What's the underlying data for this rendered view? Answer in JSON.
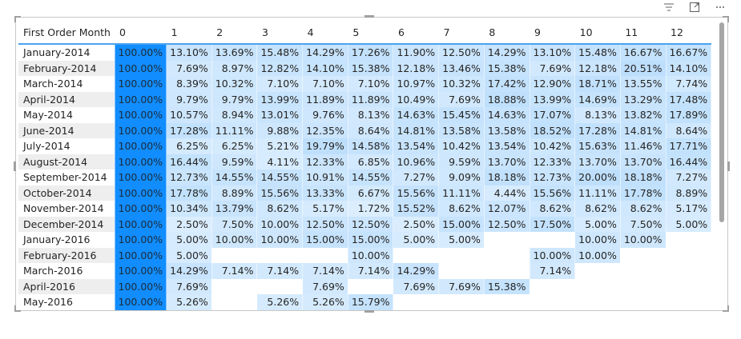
{
  "toolbar": {
    "icons": [
      "filter-icon",
      "focus-mode-icon",
      "more-options-icon"
    ],
    "glyphs": [
      "⩶",
      "⤢",
      "⋯"
    ]
  },
  "table": {
    "header_row_label": "First Order Month",
    "columns": [
      "0",
      "1",
      "2",
      "3",
      "4",
      "5",
      "6",
      "7",
      "8",
      "9",
      "10",
      "11",
      "12"
    ],
    "rows": [
      {
        "label": "January-2014",
        "values": [
          "100.00%",
          "13.10%",
          "13.69%",
          "15.48%",
          "14.29%",
          "17.26%",
          "11.90%",
          "12.50%",
          "14.29%",
          "13.10%",
          "15.48%",
          "16.67%",
          "16.67%"
        ]
      },
      {
        "label": "February-2014",
        "values": [
          "100.00%",
          "7.69%",
          "8.97%",
          "12.82%",
          "14.10%",
          "15.38%",
          "12.18%",
          "13.46%",
          "15.38%",
          "7.69%",
          "12.18%",
          "20.51%",
          "14.10%"
        ]
      },
      {
        "label": "March-2014",
        "values": [
          "100.00%",
          "8.39%",
          "10.32%",
          "7.10%",
          "7.10%",
          "7.10%",
          "10.97%",
          "10.32%",
          "17.42%",
          "12.90%",
          "18.71%",
          "13.55%",
          "7.74%"
        ]
      },
      {
        "label": "April-2014",
        "values": [
          "100.00%",
          "9.79%",
          "9.79%",
          "13.99%",
          "11.89%",
          "11.89%",
          "10.49%",
          "7.69%",
          "18.88%",
          "13.99%",
          "14.69%",
          "13.29%",
          "17.48%"
        ]
      },
      {
        "label": "May-2014",
        "values": [
          "100.00%",
          "10.57%",
          "8.94%",
          "13.01%",
          "9.76%",
          "8.13%",
          "14.63%",
          "15.45%",
          "14.63%",
          "17.07%",
          "8.13%",
          "13.82%",
          "17.89%"
        ]
      },
      {
        "label": "June-2014",
        "values": [
          "100.00%",
          "17.28%",
          "11.11%",
          "9.88%",
          "12.35%",
          "8.64%",
          "14.81%",
          "13.58%",
          "13.58%",
          "18.52%",
          "17.28%",
          "14.81%",
          "8.64%"
        ]
      },
      {
        "label": "July-2014",
        "values": [
          "100.00%",
          "6.25%",
          "6.25%",
          "5.21%",
          "19.79%",
          "14.58%",
          "13.54%",
          "10.42%",
          "13.54%",
          "10.42%",
          "15.63%",
          "11.46%",
          "17.71%"
        ]
      },
      {
        "label": "August-2014",
        "values": [
          "100.00%",
          "16.44%",
          "9.59%",
          "4.11%",
          "12.33%",
          "6.85%",
          "10.96%",
          "9.59%",
          "13.70%",
          "12.33%",
          "13.70%",
          "13.70%",
          "16.44%"
        ]
      },
      {
        "label": "September-2014",
        "values": [
          "100.00%",
          "12.73%",
          "14.55%",
          "14.55%",
          "10.91%",
          "14.55%",
          "7.27%",
          "9.09%",
          "18.18%",
          "12.73%",
          "20.00%",
          "18.18%",
          "7.27%"
        ]
      },
      {
        "label": "October-2014",
        "values": [
          "100.00%",
          "17.78%",
          "8.89%",
          "15.56%",
          "13.33%",
          "6.67%",
          "15.56%",
          "11.11%",
          "4.44%",
          "15.56%",
          "11.11%",
          "17.78%",
          "8.89%"
        ]
      },
      {
        "label": "November-2014",
        "values": [
          "100.00%",
          "10.34%",
          "13.79%",
          "8.62%",
          "5.17%",
          "1.72%",
          "15.52%",
          "8.62%",
          "12.07%",
          "8.62%",
          "8.62%",
          "8.62%",
          "5.17%"
        ]
      },
      {
        "label": "December-2014",
        "values": [
          "100.00%",
          "2.50%",
          "7.50%",
          "10.00%",
          "12.50%",
          "12.50%",
          "2.50%",
          "15.00%",
          "12.50%",
          "17.50%",
          "5.00%",
          "7.50%",
          "5.00%"
        ]
      },
      {
        "label": "January-2016",
        "values": [
          "100.00%",
          "5.00%",
          "10.00%",
          "10.00%",
          "15.00%",
          "15.00%",
          "5.00%",
          "5.00%",
          "",
          "",
          "10.00%",
          "10.00%",
          ""
        ]
      },
      {
        "label": "February-2016",
        "values": [
          "100.00%",
          "5.00%",
          "",
          "",
          "",
          "10.00%",
          "",
          "",
          "",
          "10.00%",
          "10.00%",
          "",
          ""
        ]
      },
      {
        "label": "March-2016",
        "values": [
          "100.00%",
          "14.29%",
          "7.14%",
          "7.14%",
          "7.14%",
          "7.14%",
          "14.29%",
          "",
          "",
          "7.14%",
          "",
          "",
          ""
        ]
      },
      {
        "label": "April-2016",
        "values": [
          "100.00%",
          "7.69%",
          "",
          "",
          "7.69%",
          "",
          "7.69%",
          "7.69%",
          "15.38%",
          "",
          "",
          "",
          ""
        ]
      },
      {
        "label": "May-2016",
        "values": [
          "100.00%",
          "5.26%",
          "",
          "5.26%",
          "5.26%",
          "15.79%",
          "",
          "",
          "",
          "",
          "",
          "",
          ""
        ]
      }
    ]
  },
  "colors": {
    "max_cell": "#118dff",
    "light_cell": "#deeffe",
    "header_rule": "#4aa3ef",
    "alt_row_label": "#eeeeee"
  }
}
